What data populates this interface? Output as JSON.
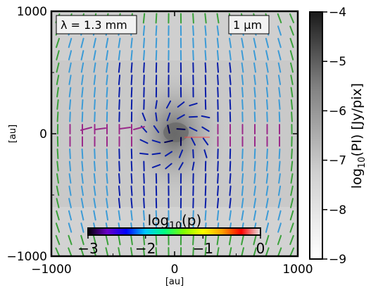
{
  "chart_data": {
    "type": "heatmap",
    "wavelength_label": "λ = 1.3 mm",
    "grain_label": "1 μm",
    "xlabel": "[au]",
    "ylabel": "[au]",
    "xlim": [
      -1000,
      1000
    ],
    "ylim": [
      -1000,
      1000
    ],
    "x_ticks": [
      -1000,
      0,
      1000
    ],
    "y_ticks": [
      1000,
      0,
      -1000
    ],
    "x_tick_labels": [
      "−1000",
      "0",
      "1000"
    ],
    "y_tick_labels": [
      "1000",
      "0",
      "−1000"
    ],
    "colorbar": {
      "label": "log₁₀(PI) [Jy/pix]",
      "range": [
        -9,
        -4
      ],
      "ticks": [
        -4,
        -5,
        -6,
        -7,
        -8,
        -9
      ],
      "tick_labels": [
        "−4",
        "−5",
        "−6",
        "−7",
        "−8",
        "−9"
      ]
    },
    "polarization_colorbar": {
      "label": "log₁₀(p)",
      "range": [
        -3,
        0
      ],
      "ticks": [
        -3,
        -2,
        -1,
        0
      ],
      "tick_labels": [
        "−3",
        "−2",
        "−1",
        "0"
      ],
      "colors": [
        "#000000",
        "#6a00c8",
        "#0000ff",
        "#00c8ff",
        "#00ff80",
        "#80ff00",
        "#ffff00",
        "#ffa000",
        "#ff0000",
        "#e8e8e8"
      ]
    },
    "vector_colors": {
      "outer": "#3aa03a",
      "mid": "#3c9bd6",
      "inner": "#0a1ea8",
      "midplane": "#9a2a8a",
      "core": "#000055",
      "flow": "#ff4040"
    }
  }
}
